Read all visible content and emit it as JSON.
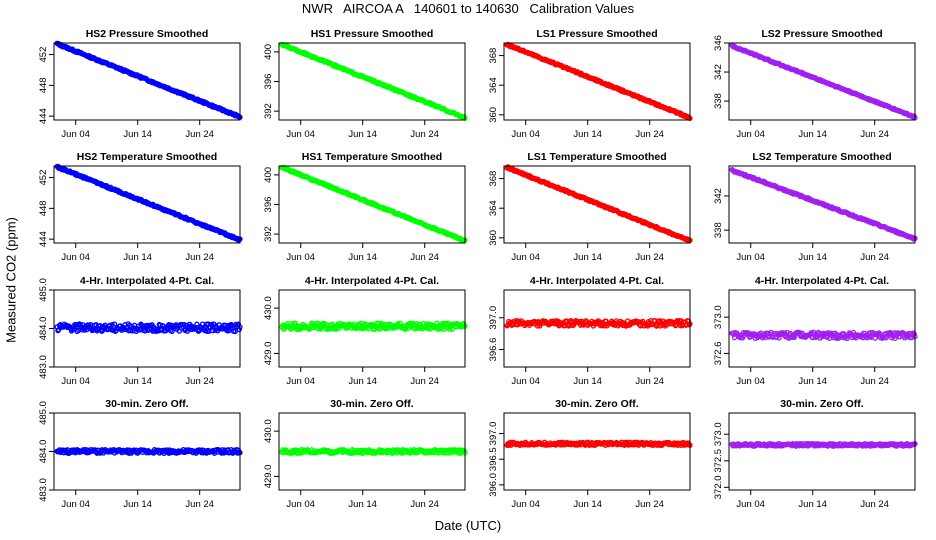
{
  "title": "NWR   AIRCOA A   140601 to 140630   Calibration Values",
  "ylabel": "Measured CO2 (ppm)",
  "xlabel": "Date (UTC)",
  "colors": {
    "HS2": "#0000ff",
    "HS1": "#00ff00",
    "LS1": "#ff0000",
    "LS2": "#a020f0"
  },
  "chart_data": [
    {
      "type": "scatter",
      "row": 0,
      "col": 0,
      "gas": "HS2",
      "title": "HS2 Pressure Smoothed",
      "xlim": [
        0.5,
        30.5
      ],
      "xticks": [
        "Jun 04",
        "Jun 14",
        "Jun 24"
      ],
      "ylim": [
        443.5,
        453.5
      ],
      "yticks": [
        444,
        448,
        452
      ],
      "start": 453.4,
      "end": 443.9,
      "noise": 0.12
    },
    {
      "type": "scatter",
      "row": 0,
      "col": 1,
      "gas": "HS1",
      "title": "HS1 Pressure Smoothed",
      "xlim": [
        0.5,
        30.5
      ],
      "xticks": [
        "Jun 04",
        "Jun 14",
        "Jun 24"
      ],
      "ylim": [
        390.8,
        401.2
      ],
      "yticks": [
        392,
        396,
        400
      ],
      "start": 401.0,
      "end": 391.1,
      "noise": 0.12
    },
    {
      "type": "scatter",
      "row": 0,
      "col": 2,
      "gas": "LS1",
      "title": "LS1 Pressure Smoothed",
      "xlim": [
        0.5,
        30.5
      ],
      "xticks": [
        "Jun 04",
        "Jun 14",
        "Jun 24"
      ],
      "ylim": [
        359.3,
        369.7
      ],
      "yticks": [
        360,
        364,
        368
      ],
      "start": 369.5,
      "end": 359.6,
      "noise": 0.12
    },
    {
      "type": "scatter",
      "row": 0,
      "col": 3,
      "gas": "LS2",
      "title": "LS2 Pressure Smoothed",
      "xlim": [
        0.5,
        30.5
      ],
      "xticks": [
        "Jun 04",
        "Jun 14",
        "Jun 24"
      ],
      "ylim": [
        335.4,
        346.0
      ],
      "yticks": [
        338,
        342,
        346
      ],
      "start": 345.6,
      "end": 335.8,
      "noise": 0.1
    },
    {
      "type": "scatter",
      "row": 1,
      "col": 0,
      "gas": "HS2",
      "title": "HS2 Temperature Smoothed",
      "xlim": [
        0.5,
        30.5
      ],
      "xticks": [
        "Jun 04",
        "Jun 14",
        "Jun 24"
      ],
      "ylim": [
        443.5,
        453.5
      ],
      "yticks": [
        444,
        448,
        452
      ],
      "start": 453.4,
      "end": 443.9,
      "noise": 0.12
    },
    {
      "type": "scatter",
      "row": 1,
      "col": 1,
      "gas": "HS1",
      "title": "HS1 Temperature Smoothed",
      "xlim": [
        0.5,
        30.5
      ],
      "xticks": [
        "Jun 04",
        "Jun 14",
        "Jun 24"
      ],
      "ylim": [
        390.8,
        401.2
      ],
      "yticks": [
        392,
        396,
        400
      ],
      "start": 401.0,
      "end": 391.1,
      "noise": 0.12
    },
    {
      "type": "scatter",
      "row": 1,
      "col": 2,
      "gas": "LS1",
      "title": "LS1 Temperature Smoothed",
      "xlim": [
        0.5,
        30.5
      ],
      "xticks": [
        "Jun 04",
        "Jun 14",
        "Jun 24"
      ],
      "ylim": [
        359.3,
        369.7
      ],
      "yticks": [
        360,
        364,
        368
      ],
      "start": 369.5,
      "end": 359.6,
      "noise": 0.12
    },
    {
      "type": "scatter",
      "row": 1,
      "col": 3,
      "gas": "LS2",
      "title": "LS2 Temperature Smoothed",
      "xlim": [
        0.5,
        30.5
      ],
      "xticks": [
        "Jun 04",
        "Jun 14",
        "Jun 24"
      ],
      "ylim": [
        336.5,
        345.5
      ],
      "yticks": [
        338,
        342
      ],
      "start": 345.0,
      "end": 337.0,
      "noise": 0.1
    },
    {
      "type": "scatter",
      "row": 2,
      "col": 0,
      "gas": "HS2",
      "title": "4-Hr. Interpolated 4-Pt. Cal.",
      "xlim": [
        0.5,
        30.5
      ],
      "xticks": [
        "Jun 04",
        "Jun 14",
        "Jun 24"
      ],
      "ylim": [
        483.0,
        485.0
      ],
      "yticks": [
        483.0,
        484.0,
        485.0
      ],
      "start": 484.02,
      "end": 484.02,
      "noise": 0.1
    },
    {
      "type": "scatter",
      "row": 2,
      "col": 1,
      "gas": "HS1",
      "title": "4-Hr. Interpolated 4-Pt. Cal.",
      "xlim": [
        0.5,
        30.5
      ],
      "xticks": [
        "Jun 04",
        "Jun 14",
        "Jun 24"
      ],
      "ylim": [
        428.7,
        430.4
      ],
      "yticks": [
        429.0,
        430.0
      ],
      "start": 429.6,
      "end": 429.6,
      "noise": 0.07
    },
    {
      "type": "scatter",
      "row": 2,
      "col": 2,
      "gas": "LS1",
      "title": "4-Hr. Interpolated 4-Pt. Cal.",
      "xlim": [
        0.5,
        30.5
      ],
      "xticks": [
        "Jun 04",
        "Jun 14",
        "Jun 24"
      ],
      "ylim": [
        396.38,
        397.35
      ],
      "yticks": [
        396.6,
        397.0
      ],
      "start": 396.93,
      "end": 396.93,
      "noise": 0.035
    },
    {
      "type": "scatter",
      "row": 2,
      "col": 3,
      "gas": "LS2",
      "title": "4-Hr. Interpolated 4-Pt. Cal.",
      "xlim": [
        0.5,
        30.5
      ],
      "xticks": [
        "Jun 04",
        "Jun 14",
        "Jun 24"
      ],
      "ylim": [
        372.45,
        373.3
      ],
      "yticks": [
        372.6,
        373.0
      ],
      "start": 372.8,
      "end": 372.8,
      "noise": 0.035
    },
    {
      "type": "scatter",
      "row": 3,
      "col": 0,
      "gas": "HS2",
      "title": "30-min. Zero Off.",
      "xlim": [
        0.5,
        30.5
      ],
      "xticks": [
        "Jun 04",
        "Jun 14",
        "Jun 24"
      ],
      "ylim": [
        483.0,
        485.0
      ],
      "yticks": [
        483.0,
        484.0,
        485.0
      ],
      "start": 484.0,
      "end": 484.0,
      "noise": 0.05
    },
    {
      "type": "scatter",
      "row": 3,
      "col": 1,
      "gas": "HS1",
      "title": "30-min. Zero Off.",
      "xlim": [
        0.5,
        30.5
      ],
      "xticks": [
        "Jun 04",
        "Jun 14",
        "Jun 24"
      ],
      "ylim": [
        428.7,
        430.4
      ],
      "yticks": [
        429.0,
        430.0
      ],
      "start": 429.55,
      "end": 429.55,
      "noise": 0.04
    },
    {
      "type": "scatter",
      "row": 3,
      "col": 2,
      "gas": "LS1",
      "title": "30-min. Zero Off.",
      "xlim": [
        0.5,
        30.5
      ],
      "xticks": [
        "Jun 04",
        "Jun 14",
        "Jun 24"
      ],
      "ylim": [
        395.9,
        397.4
      ],
      "yticks": [
        396.0,
        396.5,
        397.0
      ],
      "start": 396.8,
      "end": 396.8,
      "noise": 0.03
    },
    {
      "type": "scatter",
      "row": 3,
      "col": 3,
      "gas": "LS2",
      "title": "30-min. Zero Off.",
      "xlim": [
        0.5,
        30.5
      ],
      "xticks": [
        "Jun 04",
        "Jun 14",
        "Jun 24"
      ],
      "ylim": [
        371.95,
        373.4
      ],
      "yticks": [
        372.0,
        372.5,
        373.0
      ],
      "start": 372.8,
      "end": 372.8,
      "noise": 0.025
    }
  ]
}
